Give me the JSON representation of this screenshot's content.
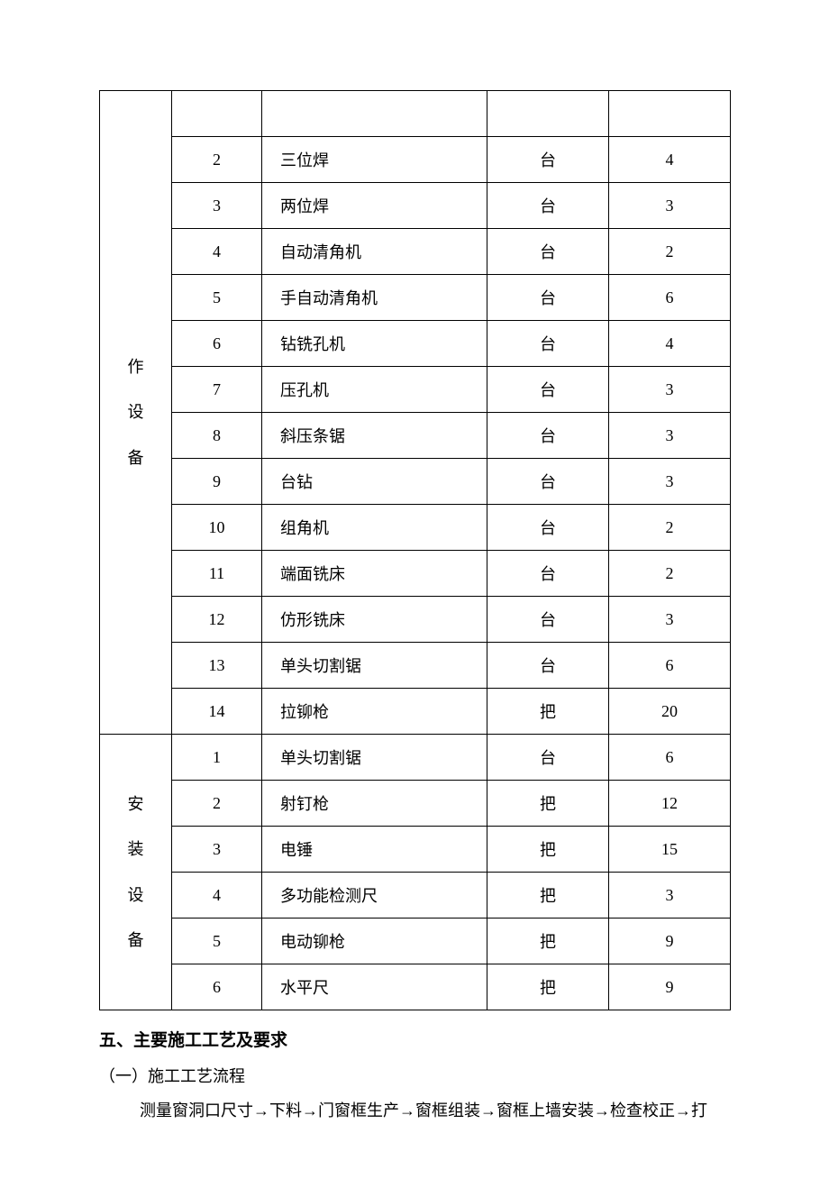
{
  "table": {
    "group1": {
      "label_chars": [
        "作",
        "设",
        "备"
      ],
      "rows": [
        {
          "num": "",
          "name": "",
          "unit": "",
          "qty": ""
        },
        {
          "num": "2",
          "name": "三位焊",
          "unit": "台",
          "qty": "4"
        },
        {
          "num": "3",
          "name": "两位焊",
          "unit": "台",
          "qty": "3"
        },
        {
          "num": "4",
          "name": "自动清角机",
          "unit": "台",
          "qty": "2"
        },
        {
          "num": "5",
          "name": "手自动清角机",
          "unit": "台",
          "qty": "6"
        },
        {
          "num": "6",
          "name": "钻铣孔机",
          "unit": "台",
          "qty": "4"
        },
        {
          "num": "7",
          "name": "压孔机",
          "unit": "台",
          "qty": "3"
        },
        {
          "num": "8",
          "name": "斜压条锯",
          "unit": "台",
          "qty": "3"
        },
        {
          "num": "9",
          "name": "台钻",
          "unit": "台",
          "qty": "3"
        },
        {
          "num": "10",
          "name": "组角机",
          "unit": "台",
          "qty": "2"
        },
        {
          "num": "11",
          "name": "端面铣床",
          "unit": "台",
          "qty": "2"
        },
        {
          "num": "12",
          "name": "仿形铣床",
          "unit": "台",
          "qty": "3"
        },
        {
          "num": "13",
          "name": "单头切割锯",
          "unit": "台",
          "qty": "6"
        },
        {
          "num": "14",
          "name": "拉铆枪",
          "unit": "把",
          "qty": "20"
        }
      ]
    },
    "group2": {
      "label_chars": [
        "安",
        "装",
        "设",
        "备"
      ],
      "rows": [
        {
          "num": "1",
          "name": "单头切割锯",
          "unit": "台",
          "qty": "6"
        },
        {
          "num": "2",
          "name": "射钉枪",
          "unit": "把",
          "qty": "12"
        },
        {
          "num": "3",
          "name": "电锤",
          "unit": "把",
          "qty": "15"
        },
        {
          "num": "4",
          "name": "多功能检测尺",
          "unit": "把",
          "qty": "3"
        },
        {
          "num": "5",
          "name": "电动铆枪",
          "unit": "把",
          "qty": "9"
        },
        {
          "num": "6",
          "name": "水平尺",
          "unit": "把",
          "qty": "9"
        }
      ]
    }
  },
  "text": {
    "heading": "五、主要施工工艺及要求",
    "subheading": "（一）施工工艺流程",
    "paragraph": "测量窗洞口尺寸→下料→门窗框生产→窗框组装→窗框上墙安装→检查校正→打"
  }
}
